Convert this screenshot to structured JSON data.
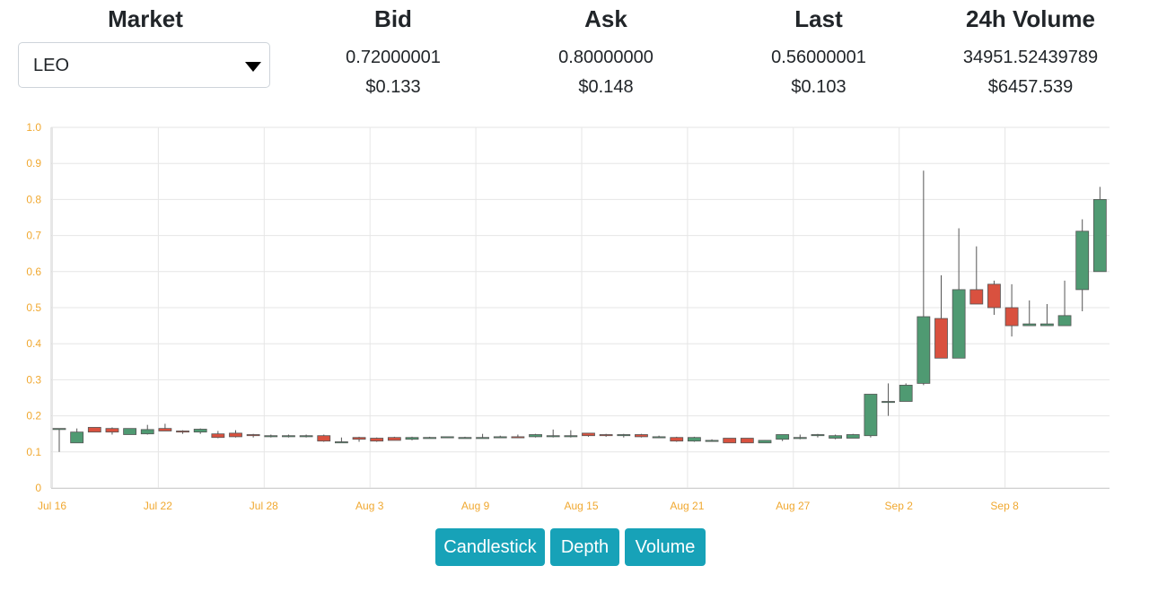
{
  "header": {
    "market": {
      "title": "Market",
      "selected": "LEO"
    },
    "bid": {
      "title": "Bid",
      "value": "0.72000001",
      "usd": "$0.133"
    },
    "ask": {
      "title": "Ask",
      "value": "0.80000000",
      "usd": "$0.148"
    },
    "last": {
      "title": "Last",
      "value": "0.56000001",
      "usd": "$0.103"
    },
    "volume": {
      "title": "24h Volume",
      "value": "34951.52439789",
      "usd": "$6457.539"
    }
  },
  "buttons": {
    "candlestick": "Candlestick",
    "depth": "Depth",
    "volume": "Volume"
  },
  "colors": {
    "up": "#4f9a72",
    "down": "#d9513f",
    "axis_text": "#f0a830",
    "grid": "#e6e6e6",
    "button": "#17a2b8"
  },
  "chart_data": {
    "type": "candlestick",
    "title": "",
    "xlabel": "",
    "ylabel": "",
    "ylim": [
      0,
      1.0
    ],
    "yticks": [
      "0",
      "0.1",
      "0.2",
      "0.3",
      "0.4",
      "0.5",
      "0.6",
      "0.7",
      "0.8",
      "0.9",
      "1.0"
    ],
    "xticks": [
      "Jul 16",
      "Jul 22",
      "Jul 28",
      "Aug 3",
      "Aug 9",
      "Aug 15",
      "Aug 21",
      "Aug 27",
      "Sep 2",
      "Sep 8"
    ],
    "grid": true,
    "candles": [
      {
        "date": "Jul 16",
        "o": 0.165,
        "h": 0.165,
        "l": 0.1,
        "c": 0.165
      },
      {
        "date": "Jul 17",
        "o": 0.125,
        "h": 0.165,
        "l": 0.125,
        "c": 0.155
      },
      {
        "date": "Jul 18",
        "o": 0.168,
        "h": 0.168,
        "l": 0.155,
        "c": 0.155
      },
      {
        "date": "Jul 19",
        "o": 0.165,
        "h": 0.168,
        "l": 0.148,
        "c": 0.155
      },
      {
        "date": "Jul 20",
        "o": 0.148,
        "h": 0.165,
        "l": 0.148,
        "c": 0.165
      },
      {
        "date": "Jul 21",
        "o": 0.15,
        "h": 0.175,
        "l": 0.148,
        "c": 0.162
      },
      {
        "date": "Jul 22",
        "o": 0.165,
        "h": 0.178,
        "l": 0.158,
        "c": 0.158
      },
      {
        "date": "Jul 23",
        "o": 0.158,
        "h": 0.16,
        "l": 0.15,
        "c": 0.155
      },
      {
        "date": "Jul 24",
        "o": 0.155,
        "h": 0.165,
        "l": 0.15,
        "c": 0.163
      },
      {
        "date": "Jul 25",
        "o": 0.15,
        "h": 0.158,
        "l": 0.138,
        "c": 0.14
      },
      {
        "date": "Jul 26",
        "o": 0.152,
        "h": 0.16,
        "l": 0.14,
        "c": 0.142
      },
      {
        "date": "Jul 27",
        "o": 0.148,
        "h": 0.15,
        "l": 0.14,
        "c": 0.145
      },
      {
        "date": "Jul 28",
        "o": 0.145,
        "h": 0.148,
        "l": 0.14,
        "c": 0.145
      },
      {
        "date": "Jul 29",
        "o": 0.145,
        "h": 0.148,
        "l": 0.14,
        "c": 0.145
      },
      {
        "date": "Jul 30",
        "o": 0.145,
        "h": 0.148,
        "l": 0.14,
        "c": 0.145
      },
      {
        "date": "Jul 31",
        "o": 0.145,
        "h": 0.148,
        "l": 0.128,
        "c": 0.13
      },
      {
        "date": "Aug 1",
        "o": 0.128,
        "h": 0.14,
        "l": 0.125,
        "c": 0.128
      },
      {
        "date": "Aug 2",
        "o": 0.14,
        "h": 0.142,
        "l": 0.128,
        "c": 0.135
      },
      {
        "date": "Aug 3",
        "o": 0.138,
        "h": 0.14,
        "l": 0.128,
        "c": 0.13
      },
      {
        "date": "Aug 4",
        "o": 0.14,
        "h": 0.142,
        "l": 0.132,
        "c": 0.132
      },
      {
        "date": "Aug 5",
        "o": 0.135,
        "h": 0.142,
        "l": 0.132,
        "c": 0.14
      },
      {
        "date": "Aug 6",
        "o": 0.14,
        "h": 0.142,
        "l": 0.138,
        "c": 0.14
      },
      {
        "date": "Aug 7",
        "o": 0.14,
        "h": 0.142,
        "l": 0.138,
        "c": 0.142
      },
      {
        "date": "Aug 8",
        "o": 0.14,
        "h": 0.142,
        "l": 0.138,
        "c": 0.14
      },
      {
        "date": "Aug 9",
        "o": 0.14,
        "h": 0.15,
        "l": 0.138,
        "c": 0.14
      },
      {
        "date": "Aug 10",
        "o": 0.14,
        "h": 0.145,
        "l": 0.138,
        "c": 0.142
      },
      {
        "date": "Aug 11",
        "o": 0.142,
        "h": 0.148,
        "l": 0.138,
        "c": 0.14
      },
      {
        "date": "Aug 12",
        "o": 0.142,
        "h": 0.15,
        "l": 0.14,
        "c": 0.148
      },
      {
        "date": "Aug 13",
        "o": 0.145,
        "h": 0.162,
        "l": 0.14,
        "c": 0.145
      },
      {
        "date": "Aug 14",
        "o": 0.145,
        "h": 0.16,
        "l": 0.14,
        "c": 0.145
      },
      {
        "date": "Aug 15",
        "o": 0.152,
        "h": 0.152,
        "l": 0.142,
        "c": 0.145
      },
      {
        "date": "Aug 16",
        "o": 0.148,
        "h": 0.15,
        "l": 0.142,
        "c": 0.145
      },
      {
        "date": "Aug 17",
        "o": 0.145,
        "h": 0.15,
        "l": 0.14,
        "c": 0.148
      },
      {
        "date": "Aug 18",
        "o": 0.148,
        "h": 0.15,
        "l": 0.14,
        "c": 0.142
      },
      {
        "date": "Aug 19",
        "o": 0.14,
        "h": 0.145,
        "l": 0.138,
        "c": 0.142
      },
      {
        "date": "Aug 20",
        "o": 0.14,
        "h": 0.142,
        "l": 0.128,
        "c": 0.13
      },
      {
        "date": "Aug 21",
        "o": 0.13,
        "h": 0.142,
        "l": 0.128,
        "c": 0.14
      },
      {
        "date": "Aug 22",
        "o": 0.132,
        "h": 0.135,
        "l": 0.128,
        "c": 0.132
      },
      {
        "date": "Aug 23",
        "o": 0.138,
        "h": 0.138,
        "l": 0.125,
        "c": 0.125
      },
      {
        "date": "Aug 24",
        "o": 0.138,
        "h": 0.138,
        "l": 0.125,
        "c": 0.125
      },
      {
        "date": "Aug 25",
        "o": 0.125,
        "h": 0.132,
        "l": 0.125,
        "c": 0.132
      },
      {
        "date": "Aug 26",
        "o": 0.135,
        "h": 0.148,
        "l": 0.13,
        "c": 0.148
      },
      {
        "date": "Aug 27",
        "o": 0.14,
        "h": 0.148,
        "l": 0.135,
        "c": 0.14
      },
      {
        "date": "Aug 28",
        "o": 0.145,
        "h": 0.15,
        "l": 0.14,
        "c": 0.148
      },
      {
        "date": "Aug 29",
        "o": 0.138,
        "h": 0.148,
        "l": 0.135,
        "c": 0.145
      },
      {
        "date": "Aug 30",
        "o": 0.138,
        "h": 0.15,
        "l": 0.138,
        "c": 0.148
      },
      {
        "date": "Aug 31",
        "o": 0.145,
        "h": 0.26,
        "l": 0.14,
        "c": 0.26
      },
      {
        "date": "Sep 1",
        "o": 0.24,
        "h": 0.29,
        "l": 0.2,
        "c": 0.24
      },
      {
        "date": "Sep 2",
        "o": 0.24,
        "h": 0.29,
        "l": 0.24,
        "c": 0.285
      },
      {
        "date": "Sep 3",
        "o": 0.29,
        "h": 0.88,
        "l": 0.285,
        "c": 0.475
      },
      {
        "date": "Sep 4",
        "o": 0.47,
        "h": 0.59,
        "l": 0.36,
        "c": 0.36
      },
      {
        "date": "Sep 5",
        "o": 0.36,
        "h": 0.72,
        "l": 0.36,
        "c": 0.55
      },
      {
        "date": "Sep 6",
        "o": 0.55,
        "h": 0.67,
        "l": 0.51,
        "c": 0.51
      },
      {
        "date": "Sep 7",
        "o": 0.565,
        "h": 0.575,
        "l": 0.48,
        "c": 0.5
      },
      {
        "date": "Sep 8",
        "o": 0.5,
        "h": 0.565,
        "l": 0.42,
        "c": 0.45
      },
      {
        "date": "Sep 9",
        "o": 0.45,
        "h": 0.52,
        "l": 0.45,
        "c": 0.455
      },
      {
        "date": "Sep 10",
        "o": 0.45,
        "h": 0.51,
        "l": 0.45,
        "c": 0.455
      },
      {
        "date": "Sep 11",
        "o": 0.45,
        "h": 0.575,
        "l": 0.45,
        "c": 0.478
      },
      {
        "date": "Sep 12",
        "o": 0.55,
        "h": 0.745,
        "l": 0.49,
        "c": 0.712
      },
      {
        "date": "Sep 13",
        "o": 0.6,
        "h": 0.835,
        "l": 0.6,
        "c": 0.8
      }
    ]
  }
}
